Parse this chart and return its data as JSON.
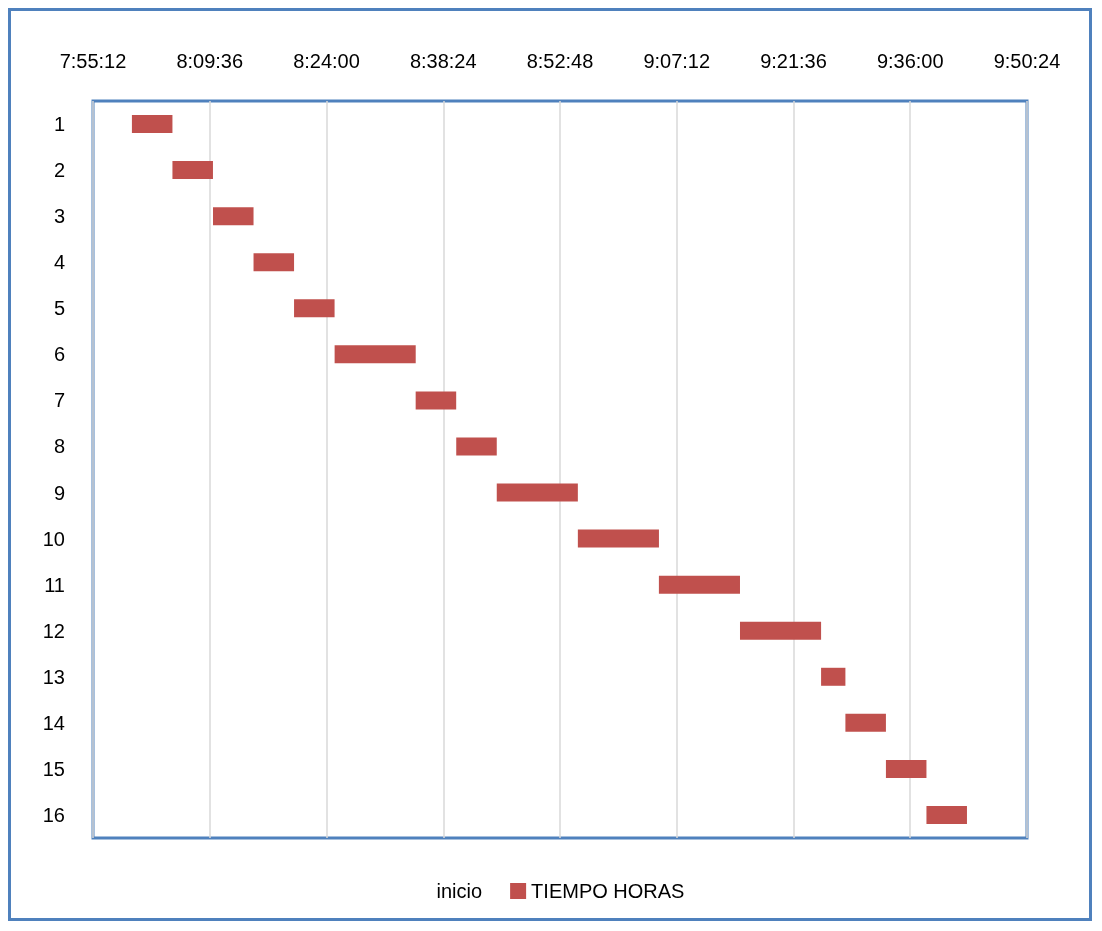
{
  "chart_data": {
    "type": "bar",
    "orientation": "horizontal",
    "stacked": false,
    "categories": [
      "1",
      "2",
      "3",
      "4",
      "5",
      "6",
      "7",
      "8",
      "9",
      "10",
      "11",
      "12",
      "13",
      "14",
      "15",
      "16"
    ],
    "series": [
      {
        "name": "TIEMPO HORAS",
        "color": "#c0504d",
        "base": [
          8.0,
          8.0833,
          8.1667,
          8.25,
          8.3333,
          8.4167,
          8.5833,
          8.6667,
          8.75,
          8.9167,
          9.0833,
          9.25,
          9.4167,
          9.4667,
          9.55,
          9.6333
        ],
        "values": [
          0.0833,
          0.0833,
          0.0833,
          0.0833,
          0.0833,
          0.1667,
          0.0833,
          0.0833,
          0.1667,
          0.1667,
          0.1667,
          0.1667,
          0.05,
          0.0833,
          0.0833,
          0.0833
        ]
      }
    ],
    "legend_title": "inicio",
    "xlim": [
      7.92,
      9.84
    ],
    "xticks": [
      {
        "value": 7.92,
        "label": "7:55:12"
      },
      {
        "value": 8.16,
        "label": "8:09:36"
      },
      {
        "value": 8.4,
        "label": "8:24:00"
      },
      {
        "value": 8.64,
        "label": "8:38:24"
      },
      {
        "value": 8.88,
        "label": "8:52:48"
      },
      {
        "value": 9.12,
        "label": "9:07:12"
      },
      {
        "value": 9.36,
        "label": "9:21:36"
      },
      {
        "value": 9.6,
        "label": "9:36:00"
      },
      {
        "value": 9.84,
        "label": "9:50:24"
      }
    ],
    "grid": "x",
    "legend": "bottom"
  }
}
